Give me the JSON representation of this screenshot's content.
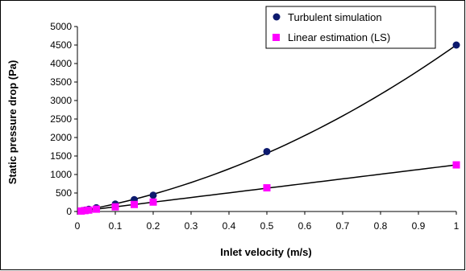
{
  "chart_data": {
    "type": "scatter",
    "title": "",
    "xlabel": "Inlet velocity (m/s)",
    "ylabel": "Static pressure drop (Pa)",
    "xlim": [
      0,
      1
    ],
    "ylim": [
      0,
      5000
    ],
    "x_ticks": [
      "0",
      "0.1",
      "0.2",
      "0.3",
      "0.4",
      "0.5",
      "0.6",
      "0.7",
      "0.8",
      "0.9",
      "1"
    ],
    "y_ticks": [
      "0",
      "500",
      "1000",
      "1500",
      "2000",
      "2500",
      "3000",
      "3500",
      "4000",
      "4500",
      "5000"
    ],
    "grid": false,
    "legend_position": "top-right",
    "series": [
      {
        "name": "Turbulent simulation",
        "marker": "circle",
        "color": "#0d1a6e",
        "x": [
          0.01,
          0.02,
          0.03,
          0.05,
          0.1,
          0.15,
          0.2,
          0.5,
          1.0
        ],
        "y": [
          15,
          35,
          60,
          100,
          200,
          320,
          440,
          1620,
          4500
        ]
      },
      {
        "name": "Linear estimation (LS)",
        "marker": "square",
        "color": "#ff00ff",
        "x": [
          0.01,
          0.02,
          0.03,
          0.05,
          0.1,
          0.15,
          0.2,
          0.5,
          1.0
        ],
        "y": [
          12,
          25,
          38,
          63,
          125,
          190,
          255,
          640,
          1260
        ]
      }
    ],
    "trendlines": [
      {
        "for_series": "Turbulent simulation",
        "type": "polynomial",
        "coefficients": [
          0,
          1800,
          2700
        ]
      },
      {
        "for_series": "Linear estimation (LS)",
        "type": "linear",
        "coefficients": [
          0,
          1260
        ]
      }
    ]
  }
}
